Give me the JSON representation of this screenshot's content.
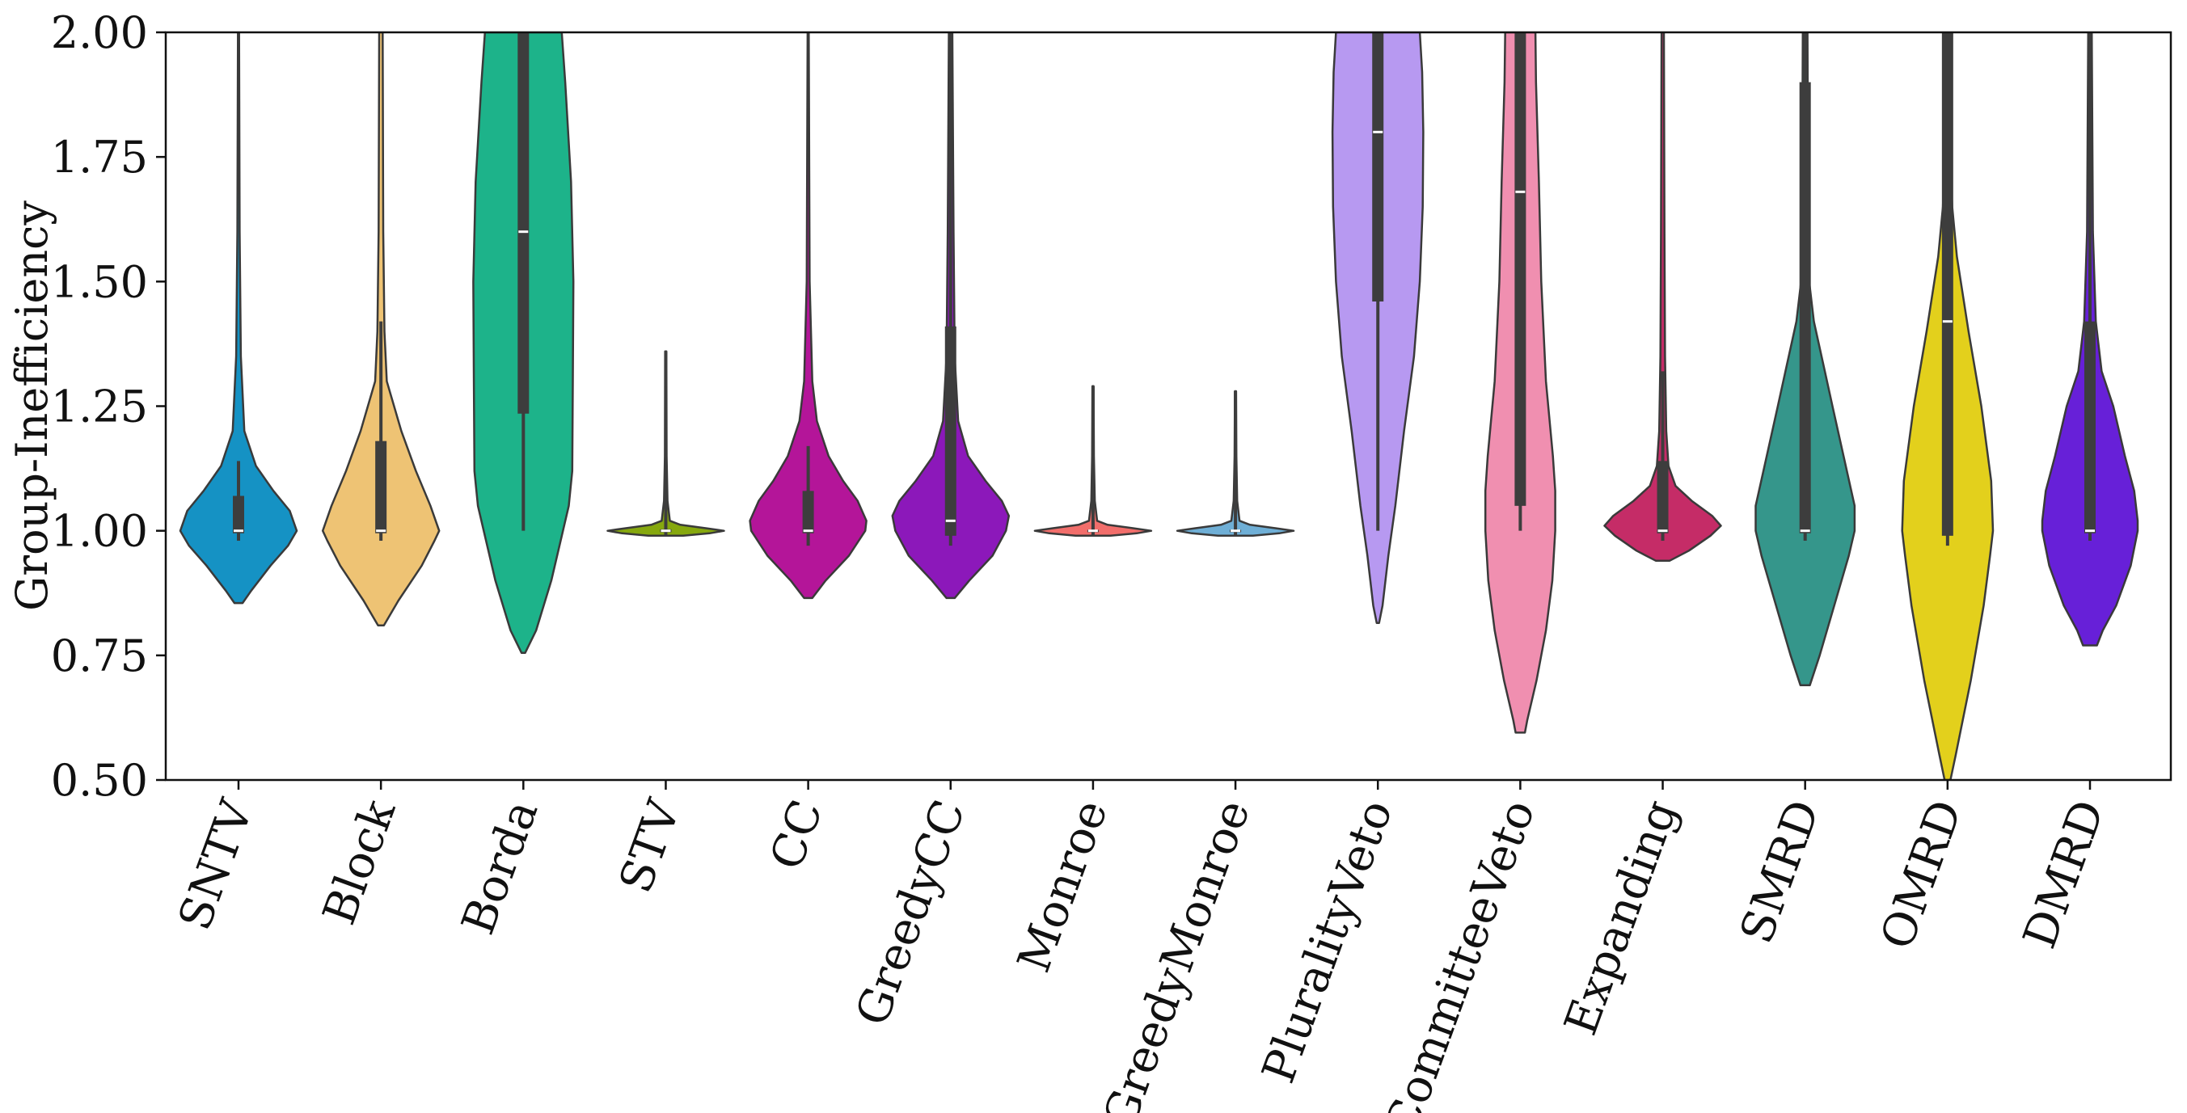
{
  "chart_data": {
    "type": "violin",
    "ylabel": "Group-Inefficiency",
    "xlabel": "",
    "ylim": [
      0.5,
      2.0
    ],
    "yticks": [
      "0.50",
      "0.75",
      "1.00",
      "1.25",
      "1.50",
      "1.75",
      "2.00"
    ],
    "grid": false,
    "legend": "none",
    "series": [
      {
        "name": "SNTV",
        "color": "#1592C4",
        "min": 0.855,
        "q1": 0.995,
        "median": 1.0,
        "q3": 1.07,
        "wlow": 0.98,
        "whigh": 1.14,
        "max": 2.0,
        "density": [
          [
            0.855,
            0.07
          ],
          [
            0.88,
            0.22
          ],
          [
            0.93,
            0.55
          ],
          [
            0.97,
            0.85
          ],
          [
            1.0,
            1.0
          ],
          [
            1.04,
            0.88
          ],
          [
            1.08,
            0.6
          ],
          [
            1.13,
            0.3
          ],
          [
            1.2,
            0.1
          ],
          [
            1.35,
            0.04
          ],
          [
            1.6,
            0.02
          ],
          [
            2.0,
            0.01
          ]
        ]
      },
      {
        "name": "Block",
        "color": "#EEC374",
        "min": 0.81,
        "q1": 0.995,
        "median": 1.0,
        "q3": 1.18,
        "wlow": 0.98,
        "whigh": 1.42,
        "max": 2.0,
        "density": [
          [
            0.81,
            0.05
          ],
          [
            0.86,
            0.3
          ],
          [
            0.93,
            0.7
          ],
          [
            0.98,
            0.92
          ],
          [
            1.0,
            1.0
          ],
          [
            1.05,
            0.85
          ],
          [
            1.12,
            0.6
          ],
          [
            1.2,
            0.35
          ],
          [
            1.3,
            0.1
          ],
          [
            1.4,
            0.06
          ],
          [
            1.6,
            0.04
          ],
          [
            2.0,
            0.03
          ]
        ]
      },
      {
        "name": "Borda",
        "color": "#1DB38A",
        "min": 0.755,
        "q1": 1.235,
        "median": 1.6,
        "q3": 2.0,
        "wlow": 1.0,
        "whigh": 2.0,
        "max": 2.0,
        "density": [
          [
            0.755,
            0.03
          ],
          [
            0.8,
            0.22
          ],
          [
            0.9,
            0.48
          ],
          [
            1.0,
            0.68
          ],
          [
            1.05,
            0.78
          ],
          [
            1.12,
            0.84
          ],
          [
            1.3,
            0.85
          ],
          [
            1.5,
            0.86
          ],
          [
            1.7,
            0.82
          ],
          [
            1.9,
            0.72
          ],
          [
            2.0,
            0.66
          ]
        ]
      },
      {
        "name": "STV",
        "color": "#86A80E",
        "min": 0.99,
        "q1": 0.997,
        "median": 1.0,
        "q3": 1.003,
        "wlow": 0.99,
        "whigh": 1.36,
        "max": 1.36,
        "density": [
          [
            0.99,
            0.3
          ],
          [
            0.995,
            0.75
          ],
          [
            1.0,
            1.0
          ],
          [
            1.005,
            0.7
          ],
          [
            1.012,
            0.25
          ],
          [
            1.02,
            0.07
          ],
          [
            1.06,
            0.03
          ],
          [
            1.15,
            0.015
          ],
          [
            1.36,
            0.01
          ]
        ]
      },
      {
        "name": "CC",
        "color": "#B41599",
        "min": 0.865,
        "q1": 0.995,
        "median": 1.0,
        "q3": 1.08,
        "wlow": 0.97,
        "whigh": 1.17,
        "max": 2.0,
        "density": [
          [
            0.865,
            0.07
          ],
          [
            0.9,
            0.3
          ],
          [
            0.95,
            0.7
          ],
          [
            1.0,
            0.98
          ],
          [
            1.02,
            1.0
          ],
          [
            1.06,
            0.85
          ],
          [
            1.1,
            0.6
          ],
          [
            1.15,
            0.35
          ],
          [
            1.22,
            0.15
          ],
          [
            1.3,
            0.07
          ],
          [
            1.5,
            0.025
          ],
          [
            2.0,
            0.01
          ]
        ]
      },
      {
        "name": "GreedyCC",
        "color": "#8C18BA",
        "min": 0.865,
        "q1": 0.99,
        "median": 1.02,
        "q3": 1.41,
        "wlow": 0.97,
        "whigh": 2.0,
        "max": 2.0,
        "density": [
          [
            0.865,
            0.07
          ],
          [
            0.9,
            0.32
          ],
          [
            0.95,
            0.72
          ],
          [
            1.0,
            0.95
          ],
          [
            1.03,
            1.0
          ],
          [
            1.06,
            0.88
          ],
          [
            1.1,
            0.6
          ],
          [
            1.15,
            0.3
          ],
          [
            1.22,
            0.13
          ],
          [
            1.35,
            0.07
          ],
          [
            1.6,
            0.05
          ],
          [
            2.0,
            0.03
          ]
        ]
      },
      {
        "name": "Monroe",
        "color": "#F26E6B",
        "min": 0.99,
        "q1": 0.998,
        "median": 1.0,
        "q3": 1.002,
        "wlow": 0.99,
        "whigh": 1.29,
        "max": 1.29,
        "density": [
          [
            0.99,
            0.3
          ],
          [
            0.995,
            0.75
          ],
          [
            1.0,
            1.0
          ],
          [
            1.005,
            0.7
          ],
          [
            1.012,
            0.25
          ],
          [
            1.02,
            0.07
          ],
          [
            1.06,
            0.03
          ],
          [
            1.15,
            0.015
          ],
          [
            1.29,
            0.01
          ]
        ]
      },
      {
        "name": "GreedyMonroe",
        "color": "#6FAFD6",
        "min": 0.99,
        "q1": 0.998,
        "median": 1.0,
        "q3": 1.002,
        "wlow": 0.99,
        "whigh": 1.28,
        "max": 1.28,
        "density": [
          [
            0.99,
            0.3
          ],
          [
            0.995,
            0.75
          ],
          [
            1.0,
            1.0
          ],
          [
            1.005,
            0.7
          ],
          [
            1.012,
            0.25
          ],
          [
            1.02,
            0.07
          ],
          [
            1.06,
            0.03
          ],
          [
            1.15,
            0.015
          ],
          [
            1.28,
            0.01
          ]
        ]
      },
      {
        "name": "PluralityVeto",
        "color": "#B799F1",
        "min": 0.815,
        "q1": 1.46,
        "median": 1.8,
        "q3": 2.0,
        "wlow": 1.0,
        "whigh": 2.0,
        "max": 2.0,
        "density": [
          [
            0.815,
            0.02
          ],
          [
            0.85,
            0.08
          ],
          [
            0.95,
            0.18
          ],
          [
            1.05,
            0.3
          ],
          [
            1.2,
            0.45
          ],
          [
            1.35,
            0.62
          ],
          [
            1.5,
            0.72
          ],
          [
            1.65,
            0.77
          ],
          [
            1.8,
            0.78
          ],
          [
            1.92,
            0.76
          ],
          [
            2.0,
            0.72
          ]
        ]
      },
      {
        "name": "CommitteeVeto",
        "color": "#F08FB0",
        "min": 0.595,
        "q1": 1.05,
        "median": 1.68,
        "q3": 2.0,
        "wlow": 1.0,
        "whigh": 2.0,
        "max": 2.0,
        "density": [
          [
            0.595,
            0.08
          ],
          [
            0.62,
            0.12
          ],
          [
            0.7,
            0.28
          ],
          [
            0.8,
            0.44
          ],
          [
            0.9,
            0.55
          ],
          [
            1.0,
            0.6
          ],
          [
            1.08,
            0.6
          ],
          [
            1.15,
            0.56
          ],
          [
            1.3,
            0.44
          ],
          [
            1.5,
            0.36
          ],
          [
            1.7,
            0.32
          ],
          [
            1.9,
            0.27
          ],
          [
            2.0,
            0.26
          ]
        ]
      },
      {
        "name": "Expanding",
        "color": "#C52C67",
        "min": 0.94,
        "q1": 0.995,
        "median": 1.0,
        "q3": 1.14,
        "wlow": 0.98,
        "whigh": 1.32,
        "max": 2.0,
        "density": [
          [
            0.94,
            0.12
          ],
          [
            0.96,
            0.45
          ],
          [
            0.99,
            0.82
          ],
          [
            1.01,
            1.0
          ],
          [
            1.03,
            0.85
          ],
          [
            1.06,
            0.5
          ],
          [
            1.09,
            0.22
          ],
          [
            1.13,
            0.1
          ],
          [
            1.2,
            0.06
          ],
          [
            1.35,
            0.04
          ],
          [
            1.6,
            0.03
          ],
          [
            2.0,
            0.02
          ]
        ]
      },
      {
        "name": "SMRD",
        "color": "#35968B",
        "min": 0.69,
        "q1": 0.995,
        "median": 1.0,
        "q3": 1.9,
        "wlow": 0.98,
        "whigh": 2.0,
        "max": 2.0,
        "density": [
          [
            0.69,
            0.08
          ],
          [
            0.75,
            0.25
          ],
          [
            0.85,
            0.5
          ],
          [
            0.95,
            0.75
          ],
          [
            1.0,
            0.85
          ],
          [
            1.05,
            0.85
          ],
          [
            1.15,
            0.66
          ],
          [
            1.25,
            0.47
          ],
          [
            1.33,
            0.32
          ],
          [
            1.42,
            0.15
          ],
          [
            1.5,
            0.07
          ],
          [
            1.7,
            0.05
          ],
          [
            2.0,
            0.04
          ]
        ]
      },
      {
        "name": "OMRD",
        "color": "#E3D01C",
        "min": 0.5,
        "q1": 0.99,
        "median": 1.42,
        "q3": 2.0,
        "wlow": 0.97,
        "whigh": 2.0,
        "max": 2.0,
        "density": [
          [
            0.5,
            0.05
          ],
          [
            0.55,
            0.14
          ],
          [
            0.7,
            0.4
          ],
          [
            0.85,
            0.62
          ],
          [
            0.95,
            0.73
          ],
          [
            1.0,
            0.78
          ],
          [
            1.1,
            0.75
          ],
          [
            1.25,
            0.58
          ],
          [
            1.4,
            0.36
          ],
          [
            1.55,
            0.16
          ],
          [
            1.65,
            0.08
          ],
          [
            1.8,
            0.04
          ],
          [
            2.0,
            0.03
          ]
        ]
      },
      {
        "name": "DMRD",
        "color": "#6720D8",
        "min": 0.77,
        "q1": 0.995,
        "median": 1.0,
        "q3": 1.42,
        "wlow": 0.98,
        "whigh": 2.0,
        "max": 2.0,
        "density": [
          [
            0.77,
            0.12
          ],
          [
            0.8,
            0.22
          ],
          [
            0.85,
            0.45
          ],
          [
            0.93,
            0.7
          ],
          [
            1.0,
            0.82
          ],
          [
            1.02,
            0.82
          ],
          [
            1.08,
            0.76
          ],
          [
            1.15,
            0.6
          ],
          [
            1.25,
            0.4
          ],
          [
            1.32,
            0.2
          ],
          [
            1.42,
            0.1
          ],
          [
            1.6,
            0.05
          ],
          [
            2.0,
            0.03
          ]
        ]
      }
    ]
  }
}
